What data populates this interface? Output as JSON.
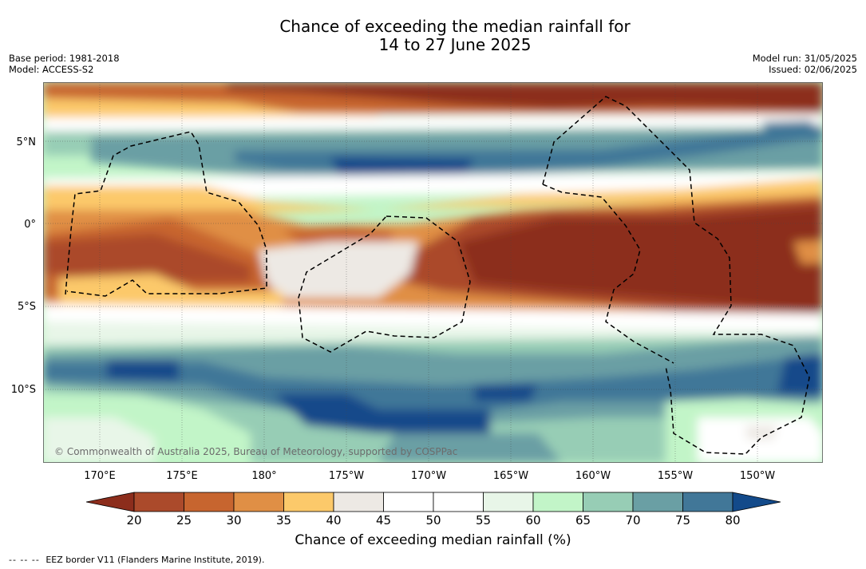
{
  "title": {
    "line1": "Chance of exceeding the median rainfall for",
    "line2": "14 to 27 June 2025"
  },
  "meta_left": {
    "base_period": "Base period: 1981-2018",
    "model": "Model: ACCESS-S2"
  },
  "meta_right": {
    "model_run": "Model run: 31/05/2025",
    "issued": "Issued: 02/06/2025"
  },
  "lat_labels": [
    "5°N",
    "0°",
    "5°S",
    "10°S"
  ],
  "lon_labels": [
    "170°E",
    "175°E",
    "180°",
    "175°W",
    "170°W",
    "165°W",
    "160°W",
    "155°W",
    "150°W"
  ],
  "copyright": "© Commonwealth of Australia 2025, Bureau of Meteorology, supported by COSPPac",
  "colorbar": {
    "ticks": [
      "20",
      "25",
      "30",
      "35",
      "40",
      "45",
      "50",
      "55",
      "60",
      "65",
      "70",
      "75",
      "80"
    ],
    "colors": [
      "#8c2d1c",
      "#ab4a2b",
      "#c7652f",
      "#e08f45",
      "#fcc96a",
      "#ede9e4",
      "#ffffff",
      "#ffffff",
      "#e8f6e8",
      "#c2f5c8",
      "#97cdb5",
      "#6a9fa4",
      "#417798",
      "#134a8a"
    ],
    "label": "Chance of exceeding median rainfall (%)"
  },
  "footnote": {
    "dashes": "-- -- --",
    "text": "EEZ border V11 (Flanders Marine Institute, 2019)."
  }
}
